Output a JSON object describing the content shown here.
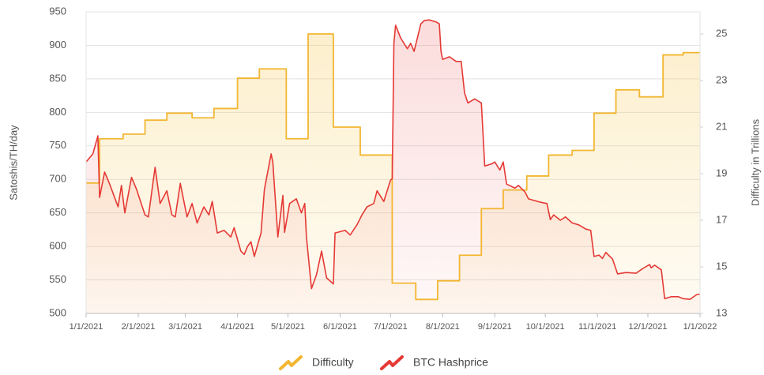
{
  "chart_data": {
    "type": "line",
    "y_label": "Satoshis/TH/day",
    "y2_label": "Difficulty in Trillions",
    "xlim": [
      "2021-01-01",
      "2022-01-01"
    ],
    "xticks": [
      {
        "value": "2021-01-01",
        "label": "1/1/2021"
      },
      {
        "value": "2021-02-01",
        "label": "2/1/2021"
      },
      {
        "value": "2021-03-01",
        "label": "3/1/2021"
      },
      {
        "value": "2021-04-01",
        "label": "4/1/2021"
      },
      {
        "value": "2021-05-01",
        "label": "5/1/2021"
      },
      {
        "value": "2021-06-01",
        "label": "6/1/2021"
      },
      {
        "value": "2021-07-01",
        "label": "7/1/2021"
      },
      {
        "value": "2021-08-01",
        "label": "8/1/2021"
      },
      {
        "value": "2021-09-01",
        "label": "9/1/2021"
      },
      {
        "value": "2021-10-01",
        "label": "10/1/2021"
      },
      {
        "value": "2021-11-01",
        "label": "11/1/2021"
      },
      {
        "value": "2021-12-01",
        "label": "12/1/2021"
      },
      {
        "value": "2022-01-01",
        "label": "1/1/2022"
      }
    ],
    "ylim": [
      500,
      950
    ],
    "yticks": [
      500,
      550,
      600,
      650,
      700,
      750,
      800,
      850,
      900,
      950
    ],
    "y2lim": [
      13,
      25.95
    ],
    "y2ticks": [
      13,
      15,
      17,
      19,
      21,
      23,
      25
    ],
    "grid": true,
    "legend": "bottom",
    "series": [
      {
        "name": "Difficulty",
        "color": "#f2b631",
        "axis": "y2",
        "step": true,
        "x": [
          "2021-01-01",
          "2021-01-09",
          "2021-01-23",
          "2021-02-05",
          "2021-02-18",
          "2021-03-05",
          "2021-03-18",
          "2021-04-01",
          "2021-04-14",
          "2021-04-30",
          "2021-05-13",
          "2021-05-28",
          "2021-06-13",
          "2021-07-02",
          "2021-07-16",
          "2021-07-29",
          "2021-08-11",
          "2021-08-24",
          "2021-09-06",
          "2021-09-20",
          "2021-10-03",
          "2021-10-17",
          "2021-10-30",
          "2021-11-12",
          "2021-11-26",
          "2021-12-10",
          "2021-12-22",
          "2022-01-01"
        ],
        "values": [
          18.6,
          20.5,
          20.7,
          21.3,
          21.6,
          21.4,
          21.8,
          23.1,
          23.5,
          20.5,
          25.0,
          21.0,
          19.8,
          14.3,
          13.6,
          14.4,
          15.5,
          17.5,
          18.3,
          18.9,
          19.8,
          20.0,
          21.6,
          22.6,
          22.3,
          24.1,
          24.2,
          24.2
        ]
      },
      {
        "name": "BTC Hashprice",
        "color": "#e53935",
        "x": [
          "2021-01-01",
          "2021-01-05",
          "2021-01-08",
          "2021-01-09",
          "2021-01-12",
          "2021-01-15",
          "2021-01-20",
          "2021-01-22",
          "2021-01-24",
          "2021-01-28",
          "2021-01-31",
          "2021-02-05",
          "2021-02-07",
          "2021-02-11",
          "2021-02-14",
          "2021-02-18",
          "2021-02-21",
          "2021-02-23",
          "2021-02-26",
          "2021-03-02",
          "2021-03-05",
          "2021-03-08",
          "2021-03-12",
          "2021-03-15",
          "2021-03-17",
          "2021-03-20",
          "2021-03-24",
          "2021-03-28",
          "2021-03-30",
          "2021-04-03",
          "2021-04-05",
          "2021-04-07",
          "2021-04-09",
          "2021-04-11",
          "2021-04-15",
          "2021-04-17",
          "2021-04-21",
          "2021-04-22",
          "2021-04-25",
          "2021-04-28",
          "2021-04-29",
          "2021-05-02",
          "2021-05-06",
          "2021-05-09",
          "2021-05-11",
          "2021-05-12",
          "2021-05-15",
          "2021-05-18",
          "2021-05-21",
          "2021-05-24",
          "2021-05-28",
          "2021-05-29",
          "2021-06-04",
          "2021-06-07",
          "2021-06-11",
          "2021-06-14",
          "2021-06-17",
          "2021-06-21",
          "2021-06-23",
          "2021-06-27",
          "2021-07-01",
          "2021-07-02",
          "2021-07-03",
          "2021-07-04",
          "2021-07-07",
          "2021-07-11",
          "2021-07-13",
          "2021-07-15",
          "2021-07-19",
          "2021-07-21",
          "2021-07-24",
          "2021-07-28",
          "2021-07-30",
          "2021-07-31",
          "2021-08-01",
          "2021-08-05",
          "2021-08-09",
          "2021-08-12",
          "2021-08-14",
          "2021-08-16",
          "2021-08-20",
          "2021-08-24",
          "2021-08-26",
          "2021-08-30",
          "2021-09-01",
          "2021-09-04",
          "2021-09-06",
          "2021-09-08",
          "2021-09-13",
          "2021-09-15",
          "2021-09-19",
          "2021-09-21",
          "2021-09-28",
          "2021-10-02",
          "2021-10-04",
          "2021-10-06",
          "2021-10-10",
          "2021-10-13",
          "2021-10-17",
          "2021-10-21",
          "2021-10-25",
          "2021-10-28",
          "2021-10-30",
          "2021-11-02",
          "2021-11-04",
          "2021-11-06",
          "2021-11-10",
          "2021-11-13",
          "2021-11-18",
          "2021-11-24",
          "2021-11-28",
          "2021-12-02",
          "2021-12-03",
          "2021-12-05",
          "2021-12-09",
          "2021-12-11",
          "2021-12-15",
          "2021-12-19",
          "2021-12-22",
          "2021-12-26",
          "2021-12-30",
          "2022-01-01"
        ],
        "values": [
          726,
          738,
          765,
          673,
          711,
          693,
          659,
          691,
          650,
          703,
          685,
          647,
          644,
          718,
          664,
          683,
          647,
          644,
          694,
          644,
          664,
          635,
          659,
          647,
          667,
          620,
          624,
          614,
          628,
          593,
          588,
          600,
          607,
          585,
          620,
          685,
          738,
          726,
          614,
          676,
          621,
          664,
          671,
          650,
          664,
          614,
          537,
          558,
          593,
          553,
          544,
          620,
          624,
          617,
          632,
          647,
          659,
          664,
          683,
          667,
          699,
          701,
          903,
          930,
          911,
          895,
          903,
          891,
          932,
          937,
          938,
          935,
          932,
          891,
          879,
          883,
          876,
          876,
          829,
          814,
          820,
          814,
          720,
          723,
          726,
          714,
          726,
          693,
          687,
          691,
          681,
          671,
          666,
          664,
          640,
          647,
          639,
          644,
          635,
          632,
          626,
          624,
          585,
          587,
          582,
          591,
          581,
          559,
          561,
          560,
          567,
          573,
          568,
          572,
          565,
          522,
          525,
          525,
          522,
          521,
          528,
          529
        ]
      }
    ]
  }
}
